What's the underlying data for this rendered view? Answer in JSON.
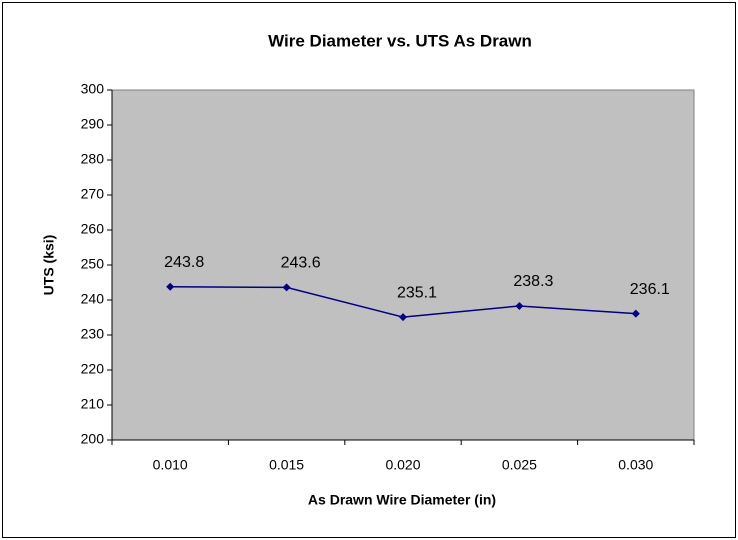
{
  "chart_data": {
    "type": "line",
    "title": "Wire Diameter vs. UTS As Drawn",
    "x_label": "As Drawn Wire Diameter (in)",
    "y_label": "UTS (ksi)",
    "categories": [
      "0.010",
      "0.015",
      "0.020",
      "0.025",
      "0.030"
    ],
    "series": [
      {
        "color": "#000080",
        "values": [
          243.8,
          243.6,
          235.1,
          238.3,
          236.1
        ]
      }
    ],
    "ylim": [
      200,
      300
    ],
    "yticks": [
      200,
      210,
      220,
      230,
      240,
      250,
      260,
      270,
      280,
      290,
      300
    ],
    "grid": false,
    "plot_background": "#c0c0c0"
  }
}
